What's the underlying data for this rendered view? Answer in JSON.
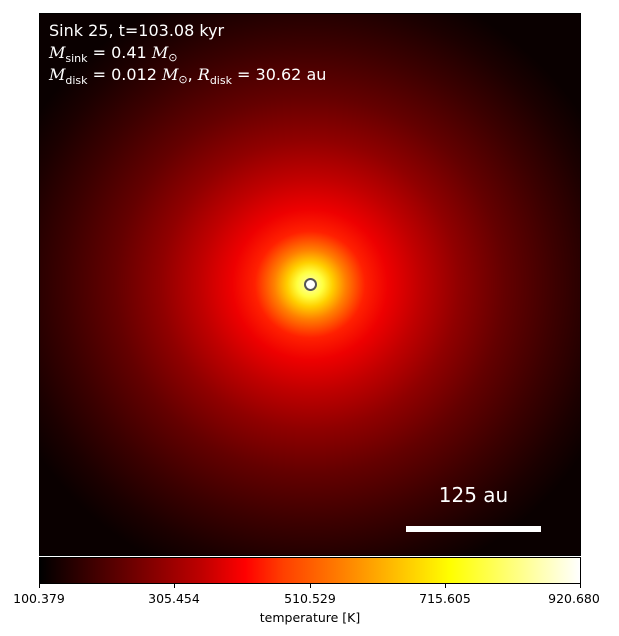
{
  "annotation": {
    "line1": "Sink 25, t=103.08 kyr",
    "sink_mass_symbol": "M",
    "sink_mass_sub": "sink",
    "sink_mass_value": " = 0.41 ",
    "solar_symbol": "M",
    "solar_sub": "⊙",
    "disk_mass_symbol": "M",
    "disk_mass_sub": "disk",
    "disk_mass_value": " = 0.012 ",
    "separator": ", ",
    "disk_radius_symbol": "R",
    "disk_radius_sub": "disk",
    "disk_radius_value": " = 30.62 au"
  },
  "scalebar": {
    "label": "125 au",
    "color": "#ffffff"
  },
  "colorbar": {
    "colormap": "hot",
    "label": "temperature [K]",
    "ticks": [
      "100.379",
      "305.454",
      "510.529",
      "715.605",
      "920.680"
    ]
  },
  "sink_marker": {
    "icon": "circle-marker-icon"
  }
}
